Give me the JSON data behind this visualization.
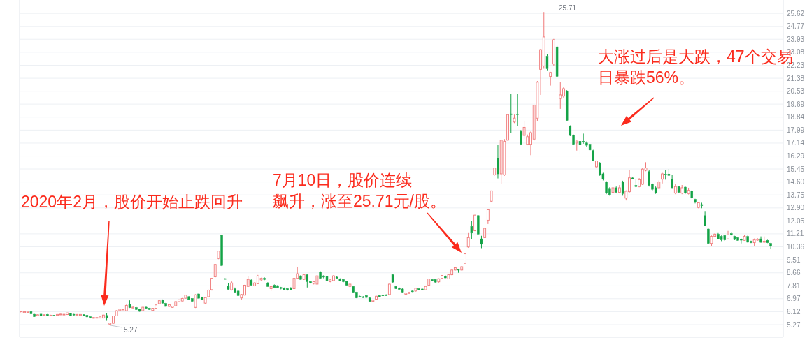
{
  "chart_data": {
    "type": "candlestick",
    "categories": [
      null,
      null,
      null,
      null,
      null,
      null,
      null,
      null,
      null,
      null,
      null,
      null,
      null,
      null,
      null,
      null,
      null,
      null,
      null,
      null,
      null,
      null,
      null,
      null,
      null,
      null,
      null,
      null,
      null,
      null,
      null,
      null,
      null,
      null,
      null,
      null,
      null,
      null,
      null,
      null,
      null,
      null,
      null,
      null,
      null,
      null,
      null,
      null,
      null,
      null,
      null,
      null,
      null,
      null,
      null,
      null,
      null,
      null,
      null,
      null,
      null,
      null,
      null,
      null,
      null,
      null,
      null,
      null,
      null,
      null,
      null,
      null,
      null,
      null,
      null,
      null,
      null,
      null,
      null,
      null,
      null,
      null,
      null,
      null,
      null,
      null,
      null,
      null,
      null,
      null,
      null,
      null,
      null,
      null,
      null,
      null,
      null,
      null,
      null,
      null,
      null,
      null,
      null,
      null,
      null,
      null,
      null,
      null,
      null,
      null,
      null,
      null,
      null,
      null,
      null,
      null,
      null,
      null,
      null,
      null,
      null,
      null,
      null,
      null,
      null,
      null,
      null,
      null,
      null,
      null,
      null,
      null,
      null,
      null,
      null,
      null,
      null,
      null,
      null,
      null,
      null,
      null,
      null,
      null,
      null,
      null,
      null,
      null,
      null,
      null,
      null,
      null,
      null,
      null,
      null,
      null,
      null,
      null,
      null,
      null,
      null,
      null,
      null,
      null,
      null,
      null,
      null,
      null,
      null,
      null,
      null,
      null,
      null,
      null,
      null,
      null,
      null,
      null,
      null,
      null,
      null,
      null,
      null,
      null,
      null,
      null,
      null,
      null,
      null,
      null,
      null,
      null,
      null,
      null,
      null,
      null,
      null,
      null,
      null,
      null,
      null,
      null,
      null,
      null,
      null,
      null,
      null,
      null,
      null,
      null,
      null,
      null,
      null,
      null,
      null,
      null,
      null,
      null,
      null,
      null,
      null,
      null,
      null,
      null,
      null,
      null,
      null,
      null,
      null
    ],
    "ohlc": [
      [
        6.03,
        6.15,
        6.0,
        6.12
      ],
      [
        6.06,
        6.14,
        6.04,
        6.12
      ],
      [
        6.07,
        6.15,
        6.05,
        6.13
      ],
      [
        6.12,
        6.14,
        5.95,
        5.98
      ],
      [
        5.95,
        5.97,
        5.78,
        5.8
      ],
      [
        5.86,
        5.95,
        5.84,
        5.92
      ],
      [
        5.96,
        5.98,
        5.84,
        5.86
      ],
      [
        5.88,
        5.94,
        5.86,
        5.92
      ],
      [
        5.94,
        5.97,
        5.84,
        5.86
      ],
      [
        5.86,
        5.92,
        5.84,
        5.89
      ],
      [
        5.89,
        5.91,
        5.85,
        5.86
      ],
      [
        5.88,
        5.96,
        5.86,
        5.94
      ],
      [
        5.92,
        5.98,
        5.9,
        5.96
      ],
      [
        5.93,
        5.97,
        5.91,
        5.95
      ],
      [
        5.93,
        6.06,
        5.91,
        6.04
      ],
      [
        6.02,
        6.04,
        5.84,
        5.86
      ],
      [
        5.95,
        5.97,
        5.88,
        5.9
      ],
      [
        5.9,
        5.96,
        5.88,
        5.94
      ],
      [
        5.88,
        5.96,
        5.86,
        5.94
      ],
      [
        5.93,
        5.95,
        5.84,
        5.86
      ],
      [
        5.88,
        5.9,
        5.76,
        5.78
      ],
      [
        5.79,
        5.8,
        5.68,
        5.7
      ],
      [
        5.69,
        5.76,
        5.67,
        5.74
      ],
      [
        5.7,
        5.77,
        5.68,
        5.74
      ],
      [
        5.7,
        5.8,
        5.68,
        5.78
      ],
      [
        5.7,
        5.92,
        5.68,
        5.9
      ],
      [
        5.87,
        6.03,
        5.52,
        5.73
      ],
      [
        5.3,
        5.4,
        5.27,
        5.38
      ],
      [
        5.36,
        5.86,
        5.33,
        5.84
      ],
      [
        5.84,
        6.21,
        5.82,
        6.18
      ],
      [
        6.18,
        6.31,
        6.15,
        6.29
      ],
      [
        6.24,
        6.3,
        6.22,
        6.28
      ],
      [
        6.18,
        6.58,
        6.16,
        6.53
      ],
      [
        6.61,
        6.86,
        6.36,
        6.38
      ],
      [
        6.36,
        6.45,
        6.33,
        6.41
      ],
      [
        6.38,
        6.42,
        6.24,
        6.26
      ],
      [
        6.28,
        6.3,
        6.12,
        6.14
      ],
      [
        6.18,
        6.42,
        6.16,
        6.41
      ],
      [
        6.41,
        6.45,
        6.32,
        6.34
      ],
      [
        6.34,
        6.37,
        6.24,
        6.26
      ],
      [
        6.2,
        6.36,
        6.18,
        6.34
      ],
      [
        6.34,
        6.58,
        6.3,
        6.56
      ],
      [
        6.64,
        6.87,
        6.6,
        6.84
      ],
      [
        6.9,
        6.92,
        6.66,
        6.68
      ],
      [
        6.66,
        6.7,
        6.44,
        6.46
      ],
      [
        6.46,
        6.6,
        6.42,
        6.58
      ],
      [
        6.4,
        6.5,
        6.37,
        6.48
      ],
      [
        6.5,
        6.8,
        6.48,
        6.78
      ],
      [
        6.78,
        6.92,
        6.75,
        6.9
      ],
      [
        6.82,
        7.02,
        6.8,
        6.98
      ],
      [
        7.0,
        7.22,
        6.98,
        7.2
      ],
      [
        7.1,
        7.14,
        6.9,
        6.92
      ],
      [
        6.98,
        7.0,
        6.78,
        6.8
      ],
      [
        6.4,
        7.26,
        6.36,
        7.22
      ],
      [
        7.28,
        7.3,
        6.98,
        7.0
      ],
      [
        7.08,
        7.1,
        6.88,
        6.9
      ],
      [
        6.68,
        7.06,
        6.64,
        7.04
      ],
      [
        7.1,
        7.56,
        7.06,
        7.53
      ],
      [
        7.56,
        8.32,
        7.5,
        8.3
      ],
      [
        8.4,
        9.24,
        8.35,
        9.21
      ],
      [
        9.6,
        10.1,
        9.55,
        10.08
      ],
      [
        11.11,
        11.14,
        9.1,
        9.14
      ],
      [
        8.28,
        8.3,
        8.24,
        8.25
      ],
      [
        7.78,
        7.98,
        7.55,
        7.58
      ],
      [
        7.55,
        8.1,
        7.5,
        8.0
      ],
      [
        7.62,
        7.7,
        7.37,
        7.39
      ],
      [
        7.47,
        7.52,
        7.15,
        7.17
      ],
      [
        7.02,
        7.28,
        6.88,
        7.24
      ],
      [
        7.2,
        7.88,
        7.18,
        7.85
      ],
      [
        7.77,
        8.45,
        7.75,
        8.23
      ],
      [
        8.19,
        8.22,
        7.82,
        7.85
      ],
      [
        7.81,
        8.05,
        7.78,
        8.0
      ],
      [
        7.95,
        8.52,
        7.92,
        8.45
      ],
      [
        8.2,
        8.34,
        8.16,
        8.3
      ],
      [
        8.3,
        8.36,
        8.18,
        8.22
      ],
      [
        8.0,
        8.05,
        7.75,
        7.77
      ],
      [
        7.62,
        7.78,
        7.47,
        7.76
      ],
      [
        7.85,
        7.9,
        7.68,
        7.7
      ],
      [
        7.82,
        7.86,
        7.68,
        7.7
      ],
      [
        7.7,
        7.74,
        7.58,
        7.64
      ],
      [
        7.66,
        7.7,
        7.52,
        7.55
      ],
      [
        7.62,
        7.66,
        7.5,
        7.54
      ],
      [
        7.66,
        7.72,
        7.52,
        7.55
      ],
      [
        7.62,
        8.32,
        7.58,
        8.3
      ],
      [
        8.3,
        9.06,
        8.26,
        8.6
      ],
      [
        8.46,
        8.5,
        8.2,
        8.23
      ],
      [
        8.23,
        8.56,
        8.2,
        8.53
      ],
      [
        8.53,
        8.58,
        7.7,
        8.08
      ],
      [
        8.08,
        8.12,
        7.96,
        8.0
      ],
      [
        7.97,
        8.12,
        7.9,
        8.08
      ],
      [
        7.92,
        8.5,
        7.9,
        8.46
      ],
      [
        8.72,
        8.76,
        8.28,
        8.3
      ],
      [
        8.46,
        8.5,
        8.3,
        8.38
      ],
      [
        8.42,
        8.46,
        8.12,
        8.15
      ],
      [
        8.08,
        8.24,
        8.04,
        8.2
      ],
      [
        8.15,
        8.5,
        8.12,
        8.46
      ],
      [
        8.38,
        8.44,
        8.26,
        8.3
      ],
      [
        8.26,
        8.3,
        8.1,
        8.13
      ],
      [
        8.22,
        8.26,
        8.04,
        8.08
      ],
      [
        8.1,
        8.14,
        7.82,
        7.85
      ],
      [
        7.77,
        7.98,
        7.7,
        7.92
      ],
      [
        7.77,
        7.8,
        7.36,
        7.39
      ],
      [
        7.39,
        7.42,
        7.0,
        7.02
      ],
      [
        7.12,
        7.16,
        7.05,
        7.08
      ],
      [
        7.09,
        7.14,
        7.02,
        7.05
      ],
      [
        7.17,
        7.22,
        7.03,
        7.05
      ],
      [
        7.02,
        7.06,
        6.76,
        6.79
      ],
      [
        6.79,
        6.9,
        6.76,
        6.88
      ],
      [
        6.94,
        7.16,
        6.9,
        7.13
      ],
      [
        7.17,
        7.2,
        7.06,
        7.09
      ],
      [
        7.2,
        7.24,
        7.14,
        7.17
      ],
      [
        7.22,
        7.26,
        7.15,
        7.17
      ],
      [
        7.24,
        7.94,
        7.2,
        7.92
      ],
      [
        8.53,
        8.56,
        8.02,
        8.05
      ],
      [
        7.77,
        7.8,
        7.6,
        7.62
      ],
      [
        7.66,
        7.7,
        7.55,
        7.58
      ],
      [
        7.6,
        7.64,
        7.37,
        7.4
      ],
      [
        7.26,
        7.38,
        7.22,
        7.34
      ],
      [
        7.32,
        7.42,
        7.28,
        7.38
      ],
      [
        7.47,
        7.5,
        7.4,
        7.43
      ],
      [
        7.47,
        7.68,
        7.44,
        7.65
      ],
      [
        7.62,
        7.66,
        7.52,
        7.55
      ],
      [
        7.6,
        7.63,
        7.52,
        7.54
      ],
      [
        7.55,
        7.8,
        7.52,
        7.77
      ],
      [
        7.85,
        8.28,
        7.82,
        8.26
      ],
      [
        8.22,
        8.26,
        8.12,
        8.15
      ],
      [
        8.22,
        8.25,
        8.02,
        8.05
      ],
      [
        8.07,
        8.3,
        8.02,
        8.27
      ],
      [
        8.3,
        8.5,
        8.28,
        8.49
      ],
      [
        8.45,
        8.5,
        8.3,
        8.33
      ],
      [
        8.26,
        8.6,
        8.24,
        8.53
      ],
      [
        8.53,
        8.88,
        8.5,
        8.84
      ],
      [
        8.84,
        9.04,
        8.8,
        8.99
      ],
      [
        8.88,
        8.92,
        8.66,
        8.84
      ],
      [
        8.84,
        9.1,
        8.8,
        9.06
      ],
      [
        9.29,
        9.93,
        9.25,
        9.9
      ],
      [
        10.35,
        11.26,
        10.3,
        10.96
      ],
      [
        11.69,
        12.05,
        10.88,
        11.26
      ],
      [
        11.41,
        12.45,
        11.38,
        12.43
      ],
      [
        12.4,
        12.43,
        11.19,
        11.19
      ],
      [
        10.88,
        11.08,
        10.27,
        10.53
      ],
      [
        10.96,
        11.6,
        10.94,
        11.57
      ],
      [
        12.1,
        12.78,
        11.85,
        12.78
      ],
      [
        13.34,
        14.02,
        13.3,
        14.02
      ],
      [
        15.06,
        15.51,
        15.02,
        15.51
      ],
      [
        16.15,
        17.03,
        14.83,
        15.13
      ],
      [
        15.13,
        17.33,
        14.45,
        17.33
      ],
      [
        15.06,
        17.4,
        15.0,
        17.26
      ],
      [
        17.33,
        19.0,
        17.3,
        19.0
      ],
      [
        19.05,
        20.37,
        17.82,
        19.0
      ],
      [
        18.52,
        19.0,
        18.45,
        18.77
      ],
      [
        19.04,
        20.37,
        18.24,
        19.0
      ],
      [
        17.91,
        18.0,
        17.0,
        17.06
      ],
      [
        17.64,
        18.6,
        17.4,
        18.17
      ],
      [
        17.06,
        17.7,
        17.0,
        17.56
      ],
      [
        17.06,
        17.9,
        16.35,
        17.82
      ],
      [
        17.4,
        19.64,
        17.3,
        19.62
      ],
      [
        18.77,
        21.2,
        18.6,
        21.12
      ],
      [
        21.96,
        23.3,
        20.29,
        23.25
      ],
      [
        22.19,
        25.71,
        22.0,
        24.08
      ],
      [
        22.82,
        22.95,
        21.9,
        22.0
      ],
      [
        21.5,
        21.8,
        20.9,
        21.76
      ],
      [
        22.31,
        23.95,
        22.2,
        23.89
      ],
      [
        23.43,
        23.5,
        21.5,
        21.5
      ],
      [
        20.06,
        21.12,
        19.38,
        20.29
      ],
      [
        20.21,
        20.8,
        20.1,
        20.7
      ],
      [
        20.55,
        20.6,
        18.6,
        18.62
      ],
      [
        18.24,
        18.3,
        17.6,
        17.64
      ],
      [
        17.67,
        17.7,
        17.0,
        17.06
      ],
      [
        17.15,
        17.3,
        16.65,
        17.27
      ],
      [
        17.26,
        17.76,
        16.42,
        17.03
      ],
      [
        17.26,
        17.76,
        17.1,
        17.21
      ],
      [
        17.15,
        17.25,
        16.9,
        17.0
      ],
      [
        17.06,
        17.1,
        16.6,
        16.69
      ],
      [
        16.65,
        16.7,
        15.95,
        16.0
      ],
      [
        15.59,
        16.0,
        15.5,
        15.97
      ],
      [
        15.84,
        15.9,
        15.0,
        15.06
      ],
      [
        15.13,
        15.2,
        14.7,
        14.78
      ],
      [
        14.6,
        14.65,
        13.8,
        13.87
      ],
      [
        14.18,
        14.25,
        13.7,
        13.77
      ],
      [
        13.92,
        14.3,
        13.85,
        14.22
      ],
      [
        14.22,
        14.3,
        13.85,
        13.92
      ],
      [
        13.92,
        14.4,
        13.85,
        14.22
      ],
      [
        14.6,
        14.68,
        13.7,
        13.84
      ],
      [
        13.54,
        14.05,
        13.39,
        13.99
      ],
      [
        13.96,
        15.36,
        13.9,
        14.87
      ],
      [
        14.86,
        14.92,
        14.78,
        14.81
      ],
      [
        14.37,
        14.78,
        14.25,
        14.3
      ],
      [
        14.3,
        14.85,
        14.25,
        14.75
      ],
      [
        14.45,
        15.5,
        14.4,
        15.44
      ],
      [
        15.36,
        15.89,
        15.3,
        15.51
      ],
      [
        15.28,
        15.4,
        14.3,
        14.37
      ],
      [
        14.45,
        14.5,
        14.05,
        14.12
      ],
      [
        14.22,
        14.3,
        13.82,
        13.87
      ],
      [
        14.22,
        14.7,
        14.18,
        14.6
      ],
      [
        14.78,
        15.2,
        14.5,
        15.13
      ],
      [
        15.1,
        15.36,
        14.75,
        15.06
      ],
      [
        15.12,
        15.45,
        15.0,
        15.03
      ],
      [
        14.78,
        15.06,
        14.2,
        14.22
      ],
      [
        13.87,
        14.45,
        13.8,
        14.3
      ],
      [
        14.3,
        14.35,
        13.88,
        13.92
      ],
      [
        13.87,
        14.4,
        13.8,
        14.22
      ],
      [
        14.26,
        14.3,
        13.82,
        13.87
      ],
      [
        13.84,
        14.22,
        13.78,
        14.05
      ],
      [
        13.99,
        14.05,
        13.52,
        13.57
      ],
      [
        13.46,
        13.5,
        13.2,
        13.27
      ],
      [
        12.93,
        13.27,
        12.88,
        13.24
      ],
      [
        13.12,
        13.24,
        12.88,
        13.05
      ],
      [
        12.4,
        12.7,
        11.72,
        11.75
      ],
      [
        11.52,
        11.56,
        10.55,
        10.58
      ],
      [
        10.58,
        11.1,
        10.43,
        11.04
      ],
      [
        11.04,
        11.25,
        11.0,
        11.19
      ],
      [
        11.19,
        11.26,
        10.85,
        10.88
      ],
      [
        11.04,
        11.1,
        10.73,
        10.81
      ],
      [
        11.08,
        11.12,
        10.78,
        10.81
      ],
      [
        10.88,
        11.4,
        10.85,
        11.14
      ],
      [
        11.22,
        11.3,
        11.1,
        11.14
      ],
      [
        11.04,
        11.08,
        10.8,
        10.84
      ],
      [
        10.96,
        11.0,
        10.75,
        10.78
      ],
      [
        10.84,
        10.9,
        10.58,
        10.8
      ],
      [
        10.78,
        11.14,
        10.75,
        11.04
      ],
      [
        11.04,
        11.1,
        10.64,
        10.66
      ],
      [
        10.73,
        10.76,
        10.6,
        10.63
      ],
      [
        10.63,
        10.9,
        10.43,
        10.81
      ],
      [
        10.8,
        10.92,
        10.76,
        10.86
      ],
      [
        10.88,
        11.04,
        10.62,
        10.66
      ],
      [
        10.66,
        11.04,
        10.62,
        10.73
      ],
      [
        10.78,
        10.82,
        10.6,
        10.63
      ],
      [
        10.58,
        10.62,
        10.23,
        10.43
      ]
    ],
    "ylim": [
      4.45,
      26.45
    ],
    "yticks": [
      5.27,
      6.12,
      6.97,
      7.81,
      8.66,
      9.51,
      10.36,
      11.21,
      12.05,
      {
        "value": 12.9,
        "label": "12.90"
      },
      13.75,
      {
        "value": 14.6,
        "label": "14.60"
      },
      15.45,
      16.29,
      17.14,
      17.99,
      18.84,
      19.69,
      20.53,
      21.38,
      22.23,
      23.08,
      23.93,
      24.77,
      25.62
    ],
    "grid": "y",
    "tick_labels": "y",
    "annotations": [
      "2020年2月，股价开始止跌回升",
      "7月10日，股价连续飙升，涨至25.71元/股。",
      "大涨过后是大跌，47个交易日暴跌56%。",
      "5.27",
      "25.71"
    ]
  }
}
